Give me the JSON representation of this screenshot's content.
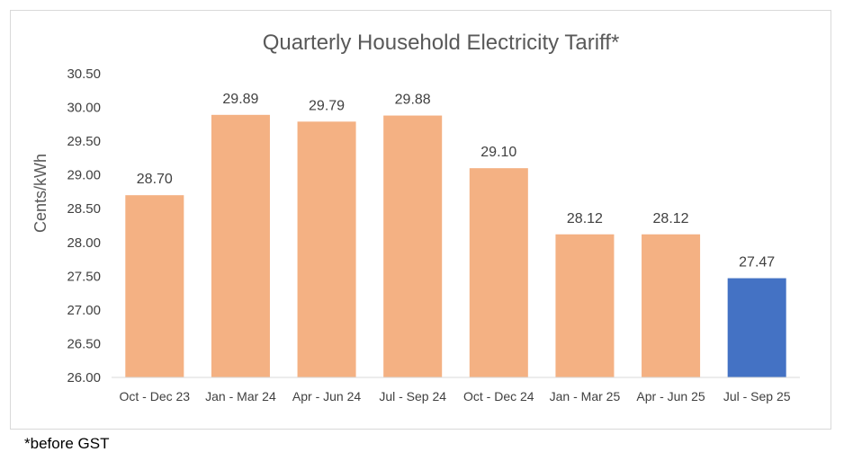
{
  "chart_data": {
    "type": "bar",
    "title": "Quarterly Household Electricity Tariff*",
    "xlabel": "",
    "ylabel": "Cents/kWh",
    "ylim": [
      26.0,
      30.5
    ],
    "yticks": [
      "26.00",
      "26.50",
      "27.00",
      "27.50",
      "28.00",
      "28.50",
      "29.00",
      "29.50",
      "30.00",
      "30.50"
    ],
    "categories": [
      "Oct - Dec 23",
      "Jan - Mar 24",
      "Apr - Jun 24",
      "Jul - Sep 24",
      "Oct - Dec 24",
      "Jan - Mar 25",
      "Apr - Jun 25",
      "Jul - Sep 25"
    ],
    "values": [
      28.7,
      29.89,
      29.79,
      29.88,
      29.1,
      28.12,
      28.12,
      27.47
    ],
    "data_labels": [
      "28.70",
      "29.89",
      "29.79",
      "29.88",
      "29.10",
      "28.12",
      "28.12",
      "27.47"
    ],
    "bar_colors": [
      "#f4b183",
      "#f4b183",
      "#f4b183",
      "#f4b183",
      "#f4b183",
      "#f4b183",
      "#f4b183",
      "#4472c4"
    ],
    "grid": false,
    "legend": "none"
  },
  "footnote": "*before GST"
}
